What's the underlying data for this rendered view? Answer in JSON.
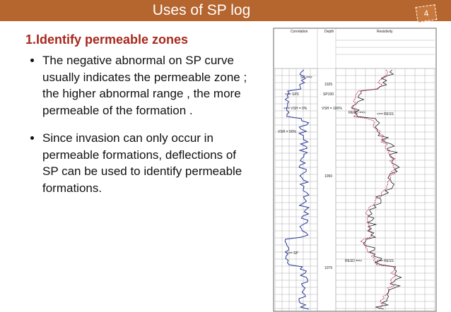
{
  "header": {
    "title": "Uses of SP log",
    "page_number": "4"
  },
  "heading": "1.Identify permeable zones",
  "bullets": [
    "The negative abnormal on SP curve usually indicates the permeable zone ; the higher abnormal range , the more permeable of the formation .",
    "Since invasion can only  occur in permeable formations, deflections of SP can be used to identify permeable formations."
  ],
  "log": {
    "track_headers": [
      "Correlation",
      "Depth",
      "Resistivity"
    ],
    "curve_labels": [
      "SP ==>",
      "<== SP0",
      "SP100",
      "<== VSH = 0%",
      "VSH = 100%",
      "VSH = 50%",
      "<== SP",
      "RESD ==>",
      "<== RESS",
      "RESD ==>",
      "<== RESS"
    ],
    "depths": [
      "1025",
      "1050",
      "1075"
    ]
  }
}
